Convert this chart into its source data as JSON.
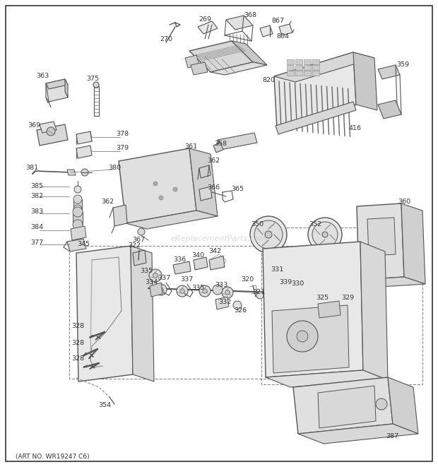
{
  "art_no": "(ART NO. WR19247 C6)",
  "watermark": "eReplacementParts.com",
  "bg_color": "#ffffff",
  "border_color": "#333333",
  "lc": "#555555",
  "tc": "#333333",
  "wc": "#bbbbbb",
  "fig_width": 6.2,
  "fig_height": 6.61,
  "dpi": 100
}
